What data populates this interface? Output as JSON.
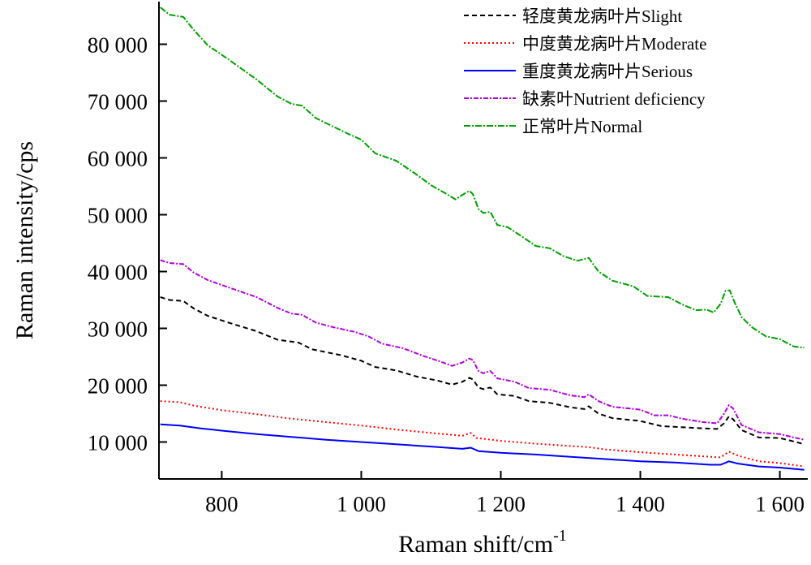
{
  "chart_data": {
    "type": "line",
    "title": "",
    "xlabel": "Raman shift/cm",
    "xlabel_sup": "-1",
    "ylabel": "Raman intensity/cps",
    "xlim": [
      710,
      1640
    ],
    "ylim": [
      3500,
      87500
    ],
    "xticks": [
      800,
      1000,
      1200,
      1400,
      1600
    ],
    "xtick_labels": [
      "800",
      "1 000",
      "1 200",
      "1 400",
      "1 600"
    ],
    "yticks": [
      10000,
      20000,
      30000,
      40000,
      50000,
      60000,
      70000,
      80000
    ],
    "ytick_labels": [
      "10 000",
      "20 000",
      "30 000",
      "40 000",
      "50 000",
      "60 000",
      "70 000",
      "80 000"
    ],
    "grid": false,
    "legend_position": "top-right",
    "series": [
      {
        "name": "轻度黄龙病叶片Slight",
        "color": "#000000",
        "dash": "6,4",
        "points": [
          [
            712,
            35500
          ],
          [
            725,
            35000
          ],
          [
            745,
            34800
          ],
          [
            760,
            33500
          ],
          [
            780,
            32200
          ],
          [
            810,
            31000
          ],
          [
            850,
            29500
          ],
          [
            880,
            28000
          ],
          [
            910,
            27500
          ],
          [
            930,
            26300
          ],
          [
            970,
            25300
          ],
          [
            1000,
            24300
          ],
          [
            1020,
            23200
          ],
          [
            1050,
            22600
          ],
          [
            1080,
            21500
          ],
          [
            1110,
            20800
          ],
          [
            1130,
            20100
          ],
          [
            1145,
            20600
          ],
          [
            1155,
            21300
          ],
          [
            1160,
            21000
          ],
          [
            1168,
            19600
          ],
          [
            1175,
            19300
          ],
          [
            1185,
            19600
          ],
          [
            1195,
            18400
          ],
          [
            1220,
            18100
          ],
          [
            1240,
            17200
          ],
          [
            1270,
            16900
          ],
          [
            1300,
            16100
          ],
          [
            1320,
            15800
          ],
          [
            1326,
            16300
          ],
          [
            1340,
            15000
          ],
          [
            1360,
            14200
          ],
          [
            1400,
            13700
          ],
          [
            1430,
            12800
          ],
          [
            1460,
            12600
          ],
          [
            1490,
            12400
          ],
          [
            1510,
            12300
          ],
          [
            1520,
            13300
          ],
          [
            1527,
            14500
          ],
          [
            1533,
            14000
          ],
          [
            1545,
            12100
          ],
          [
            1570,
            10800
          ],
          [
            1600,
            10700
          ],
          [
            1620,
            10100
          ],
          [
            1635,
            9600
          ]
        ]
      },
      {
        "name": "中度黄龙病叶片Moderate",
        "color": "#ff0000",
        "dash": "2,3",
        "points": [
          [
            712,
            17200
          ],
          [
            740,
            17000
          ],
          [
            760,
            16400
          ],
          [
            800,
            15600
          ],
          [
            850,
            14900
          ],
          [
            900,
            14100
          ],
          [
            950,
            13500
          ],
          [
            1000,
            12900
          ],
          [
            1050,
            12200
          ],
          [
            1100,
            11600
          ],
          [
            1145,
            11100
          ],
          [
            1157,
            11600
          ],
          [
            1165,
            10700
          ],
          [
            1180,
            10500
          ],
          [
            1200,
            10200
          ],
          [
            1250,
            9700
          ],
          [
            1300,
            9300
          ],
          [
            1325,
            9100
          ],
          [
            1350,
            8700
          ],
          [
            1400,
            8200
          ],
          [
            1450,
            7800
          ],
          [
            1500,
            7400
          ],
          [
            1515,
            7300
          ],
          [
            1527,
            8300
          ],
          [
            1540,
            7600
          ],
          [
            1570,
            6600
          ],
          [
            1600,
            6300
          ],
          [
            1635,
            5700
          ]
        ]
      },
      {
        "name": "重度黄龙病叶片Serious",
        "color": "#0000ff",
        "dash": "",
        "points": [
          [
            712,
            13100
          ],
          [
            740,
            12900
          ],
          [
            770,
            12400
          ],
          [
            800,
            12000
          ],
          [
            850,
            11400
          ],
          [
            900,
            10900
          ],
          [
            950,
            10400
          ],
          [
            1000,
            10000
          ],
          [
            1050,
            9600
          ],
          [
            1100,
            9200
          ],
          [
            1145,
            8800
          ],
          [
            1157,
            9000
          ],
          [
            1168,
            8400
          ],
          [
            1200,
            8100
          ],
          [
            1250,
            7800
          ],
          [
            1300,
            7400
          ],
          [
            1350,
            7000
          ],
          [
            1400,
            6600
          ],
          [
            1450,
            6400
          ],
          [
            1500,
            6000
          ],
          [
            1515,
            6000
          ],
          [
            1527,
            6600
          ],
          [
            1540,
            6200
          ],
          [
            1570,
            5700
          ],
          [
            1600,
            5500
          ],
          [
            1635,
            5100
          ]
        ]
      },
      {
        "name": "缺素叶Nutrient deficiency",
        "color": "#b000e0",
        "dash": "6,2,2,2",
        "points": [
          [
            712,
            42000
          ],
          [
            725,
            41500
          ],
          [
            745,
            41300
          ],
          [
            760,
            39800
          ],
          [
            780,
            38500
          ],
          [
            810,
            37200
          ],
          [
            850,
            35500
          ],
          [
            880,
            33600
          ],
          [
            900,
            32600
          ],
          [
            915,
            32400
          ],
          [
            935,
            31000
          ],
          [
            960,
            30200
          ],
          [
            990,
            29400
          ],
          [
            1010,
            28600
          ],
          [
            1030,
            27300
          ],
          [
            1060,
            26500
          ],
          [
            1090,
            25100
          ],
          [
            1110,
            24300
          ],
          [
            1130,
            23400
          ],
          [
            1145,
            24000
          ],
          [
            1155,
            24700
          ],
          [
            1160,
            24400
          ],
          [
            1168,
            22500
          ],
          [
            1175,
            22100
          ],
          [
            1185,
            22500
          ],
          [
            1195,
            21200
          ],
          [
            1220,
            20600
          ],
          [
            1240,
            19500
          ],
          [
            1270,
            19200
          ],
          [
            1300,
            18200
          ],
          [
            1320,
            17900
          ],
          [
            1326,
            18400
          ],
          [
            1340,
            17200
          ],
          [
            1360,
            16200
          ],
          [
            1400,
            15700
          ],
          [
            1420,
            14700
          ],
          [
            1440,
            14700
          ],
          [
            1460,
            14100
          ],
          [
            1490,
            13500
          ],
          [
            1510,
            13300
          ],
          [
            1520,
            15000
          ],
          [
            1527,
            16500
          ],
          [
            1533,
            15900
          ],
          [
            1545,
            13000
          ],
          [
            1570,
            11700
          ],
          [
            1600,
            11400
          ],
          [
            1620,
            10800
          ],
          [
            1635,
            10400
          ]
        ]
      },
      {
        "name": "正常叶片Normal",
        "color": "#00a000",
        "dash": "8,2,2,2",
        "points": [
          [
            712,
            86500
          ],
          [
            725,
            85200
          ],
          [
            745,
            84800
          ],
          [
            760,
            82500
          ],
          [
            780,
            79800
          ],
          [
            810,
            77300
          ],
          [
            850,
            73800
          ],
          [
            880,
            70800
          ],
          [
            900,
            69500
          ],
          [
            915,
            69200
          ],
          [
            935,
            67000
          ],
          [
            960,
            65500
          ],
          [
            980,
            64300
          ],
          [
            1000,
            63200
          ],
          [
            1020,
            60800
          ],
          [
            1050,
            59500
          ],
          [
            1080,
            57000
          ],
          [
            1100,
            55200
          ],
          [
            1120,
            53800
          ],
          [
            1135,
            52700
          ],
          [
            1145,
            53500
          ],
          [
            1155,
            54200
          ],
          [
            1160,
            53600
          ],
          [
            1168,
            51000
          ],
          [
            1175,
            50300
          ],
          [
            1185,
            50500
          ],
          [
            1195,
            48200
          ],
          [
            1210,
            47800
          ],
          [
            1230,
            46200
          ],
          [
            1250,
            44500
          ],
          [
            1270,
            44100
          ],
          [
            1290,
            42700
          ],
          [
            1310,
            41900
          ],
          [
            1326,
            42400
          ],
          [
            1340,
            40000
          ],
          [
            1360,
            38400
          ],
          [
            1390,
            37400
          ],
          [
            1410,
            35700
          ],
          [
            1440,
            35500
          ],
          [
            1460,
            34200
          ],
          [
            1480,
            33200
          ],
          [
            1495,
            33300
          ],
          [
            1505,
            32800
          ],
          [
            1515,
            34300
          ],
          [
            1522,
            36600
          ],
          [
            1528,
            36700
          ],
          [
            1535,
            34600
          ],
          [
            1545,
            32000
          ],
          [
            1560,
            30200
          ],
          [
            1580,
            28600
          ],
          [
            1600,
            28100
          ],
          [
            1620,
            26800
          ],
          [
            1635,
            26600
          ]
        ]
      }
    ]
  }
}
